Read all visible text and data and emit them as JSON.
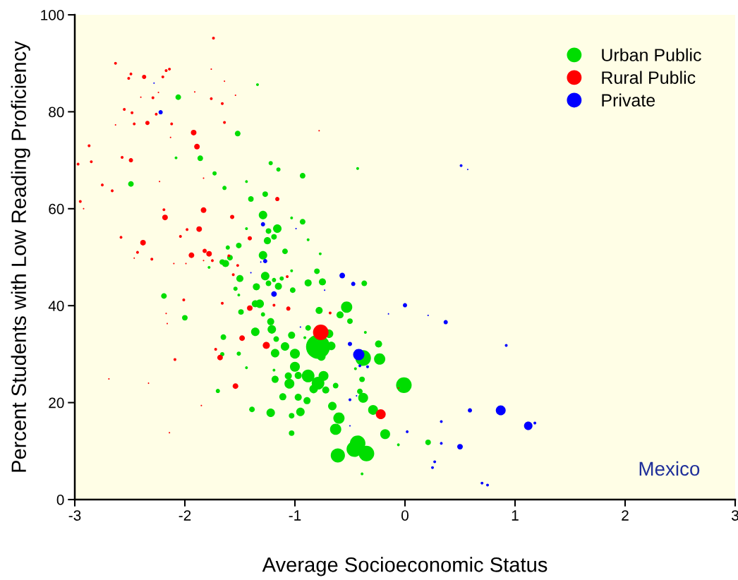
{
  "chart_data": {
    "type": "bubble",
    "xlabel": "Average Socioeconomic Status",
    "ylabel": "Percent Students with Low Reading Proficiency",
    "annotations": [
      "Mexico"
    ],
    "xlim": [
      -3,
      3
    ],
    "xticks": [
      -3,
      -2,
      -1,
      0,
      1,
      2,
      3
    ],
    "ylim": [
      0,
      100
    ],
    "yticks": [
      0,
      20,
      40,
      60,
      80,
      100
    ],
    "grid": false,
    "legend": "top right",
    "marker": "circle",
    "series": [
      {
        "name": "Urban Public",
        "color": "#00dd00",
        "x": [
          -1.34,
          -2.06,
          -1.52,
          -2.08,
          -1.86,
          -1.73,
          -2.49,
          -1.64,
          -1.44,
          -1.22,
          -1.15,
          -0.93,
          -1.4,
          -1.27,
          -1.29,
          -0.93,
          -1.16,
          -1.24,
          -1.19,
          -1.03,
          -1.44,
          -0.43,
          -1.25,
          -1.51,
          -1.61,
          -1.59,
          -1.66,
          -1.29,
          -1.09,
          -0.88,
          -0.77,
          -1.63,
          -1.78,
          -1.5,
          -1.27,
          -1.24,
          -1.15,
          -1.12,
          -1.19,
          -1.35,
          -1.54,
          -1.51,
          -1.02,
          -0.88,
          -0.75,
          -0.8,
          -1.03,
          -0.37,
          -2.19,
          -2.0,
          -1.36,
          -1.32,
          -1.49,
          -1.29,
          -0.78,
          -0.53,
          -0.59,
          -0.5,
          -1.22,
          -1.21,
          -1.36,
          -1.17,
          -1.09,
          -1.18,
          -1.0,
          -1.51,
          -1.66,
          -1.65,
          -0.88,
          -0.91,
          -1.03,
          -1.0,
          -1.19,
          -1.06,
          -1.05,
          -1.18,
          -1.44,
          -0.97,
          -1.11,
          -0.97,
          -0.89,
          -1.39,
          -1.22,
          -1.03,
          -0.95,
          -1.7,
          -1.03,
          -0.79,
          -0.69,
          -0.67,
          -0.76,
          -0.88,
          -0.79,
          -0.74,
          -0.83,
          -0.72,
          -0.63,
          -0.66,
          -0.6,
          -0.63,
          -0.61,
          -0.43,
          -0.46,
          -0.35,
          -0.39,
          -0.38,
          -0.23,
          -0.24,
          -0.36,
          -0.45,
          -0.39,
          -0.41,
          -0.38,
          -0.29,
          -0.18,
          -0.01,
          -0.06,
          0.21
        ],
        "values": [
          85.6,
          83.0,
          75.5,
          70.5,
          70.4,
          67.3,
          65.1,
          64.3,
          65.6,
          69.4,
          68.1,
          66.8,
          62.0,
          63.0,
          58.7,
          57.3,
          55.9,
          55.4,
          54.2,
          58.1,
          55.9,
          68.3,
          53.4,
          52.4,
          52.0,
          49.9,
          49.0,
          50.4,
          51.2,
          53.6,
          50.7,
          48.7,
          47.9,
          45.6,
          46.1,
          44.6,
          44.0,
          45.6,
          45.3,
          43.9,
          43.5,
          42.2,
          43.2,
          44.7,
          44.9,
          47.1,
          47.2,
          44.6,
          42.0,
          37.5,
          40.4,
          40.4,
          38.7,
          38.2,
          39.0,
          39.7,
          38.1,
          36.8,
          36.7,
          35.1,
          34.6,
          33.1,
          31.6,
          30.2,
          30.1,
          30.1,
          30.0,
          33.5,
          35.4,
          33.4,
          33.9,
          27.4,
          26.7,
          25.5,
          23.9,
          24.8,
          27.2,
          25.6,
          21.2,
          21.1,
          20.4,
          18.6,
          17.9,
          17.3,
          18.1,
          22.4,
          13.7,
          31.5,
          34.2,
          31.7,
          29.5,
          25.5,
          24.0,
          25.5,
          22.8,
          22.6,
          23.5,
          19.3,
          16.8,
          14.5,
          9.1,
          11.6,
          10.4,
          9.5,
          5.3,
          29.2,
          29.0,
          32.1,
          34.5,
          27.0,
          24.8,
          22.3,
          21.0,
          18.5,
          13.5,
          23.6,
          11.3,
          11.8
        ],
        "sizes": [
          0.014,
          0.055,
          0.055,
          0.014,
          0.055,
          0.031,
          0.055,
          0.031,
          0.014,
          0.031,
          0.031,
          0.055,
          0.055,
          0.055,
          0.125,
          0.055,
          0.125,
          0.055,
          0.055,
          0.014,
          0.014,
          0.014,
          0.087,
          0.055,
          0.031,
          0.055,
          0.055,
          0.125,
          0.055,
          0.014,
          0.014,
          0.087,
          0.014,
          0.087,
          0.125,
          0.055,
          0.087,
          0.031,
          0.031,
          0.087,
          0.031,
          0.014,
          0.055,
          0.087,
          0.087,
          0.055,
          0.014,
          0.055,
          0.055,
          0.055,
          0.087,
          0.125,
          0.055,
          0.031,
          0.087,
          0.22,
          0.087,
          0.055,
          0.087,
          0.125,
          0.125,
          0.055,
          0.125,
          0.125,
          0.17,
          0.031,
          0.031,
          0.055,
          0.055,
          0.014,
          0.087,
          0.17,
          0.014,
          0.087,
          0.17,
          0.087,
          0.014,
          0.087,
          0.087,
          0.087,
          0.087,
          0.055,
          0.125,
          0.055,
          0.125,
          0.031,
          0.055,
          1,
          0.125,
          0.125,
          0.125,
          0.28,
          0.28,
          0.17,
          0.125,
          0.087,
          0.055,
          0.125,
          0.22,
          0.22,
          0.35,
          0.42,
          0.42,
          0.42,
          0.014,
          0.42,
          0.22,
          0.087,
          0.014,
          0.014,
          0.055,
          0.055,
          0.17,
          0.17,
          0.17,
          0.42,
          0.014,
          0.055
        ]
      },
      {
        "name": "Rural Public",
        "color": "#ff0000",
        "x": [
          -2.63,
          -2.49,
          -2.51,
          -2.37,
          -2.17,
          -2.14,
          -2.2,
          -1.74,
          -1.76,
          -1.64,
          -1.91,
          -2.4,
          -2.29,
          -2.24,
          -1.76,
          -1.66,
          -1.54,
          -2.55,
          -2.48,
          -2.26,
          -2.46,
          -2.34,
          -2.12,
          -1.64,
          -2.63,
          -2.13,
          -1.92,
          -1.89,
          -2.87,
          -2.57,
          -2.49,
          -2.85,
          -2.97,
          -1.83,
          -2.23,
          -2.75,
          -2.66,
          -2.95,
          -2.92,
          -2.19,
          -2.18,
          -1.83,
          -1.57,
          -1.87,
          -1.98,
          -2.04,
          -1.16,
          -1.41,
          -2.58,
          -2.38,
          -2.43,
          -2.46,
          -2.3,
          -1.94,
          -1.82,
          -1.78,
          -1.75,
          -1.83,
          -1.99,
          -2.1,
          -1.6,
          -1.52,
          -1.56,
          -1.07,
          -2.01,
          -1.66,
          -2.17,
          -2.16,
          -1.41,
          -1.19,
          -1.06,
          -1.48,
          -1.26,
          -1.72,
          -1.68,
          -2.09,
          -1.54,
          -2.69,
          -2.33,
          -1.85,
          -2.14,
          -0.765,
          -0.68,
          -0.22,
          -0.06,
          -0.78
        ],
        "values": [
          90.0,
          87.8,
          86.9,
          87.2,
          88.5,
          88.8,
          87.2,
          95.2,
          88.8,
          86.3,
          84.1,
          83.0,
          82.9,
          84.0,
          82.7,
          81.7,
          83.4,
          80.5,
          79.8,
          79.5,
          77.5,
          77.7,
          77.5,
          77.8,
          77.3,
          74.7,
          75.7,
          72.8,
          73.0,
          70.6,
          70.0,
          69.7,
          69.2,
          66.3,
          65.6,
          64.9,
          63.7,
          61.5,
          60.0,
          59.8,
          58.2,
          59.7,
          58.3,
          55.8,
          55.7,
          54.3,
          62.0,
          53.9,
          54.1,
          53.0,
          51.0,
          49.8,
          49.6,
          50.4,
          51.3,
          50.7,
          49.3,
          49.3,
          48.7,
          48.7,
          50.3,
          48.3,
          46.4,
          46.0,
          41.2,
          40.5,
          38.4,
          36.3,
          39.5,
          40.1,
          39.4,
          33.3,
          31.8,
          31.0,
          29.3,
          28.9,
          23.4,
          24.9,
          24.0,
          19.4,
          13.8,
          34.5,
          38.5,
          17.6,
          23.0,
          76.1
        ],
        "sizes": [
          0.014,
          0.014,
          0.014,
          0.031,
          0.014,
          0.014,
          0.014,
          0.014,
          0.0035,
          0.0035,
          0.0035,
          0.0035,
          0.014,
          0.0035,
          0.014,
          0.014,
          0.0035,
          0.014,
          0.014,
          0.014,
          0.014,
          0.031,
          0.014,
          0.014,
          0.0035,
          0.0035,
          0.055,
          0.055,
          0.014,
          0.014,
          0.031,
          0.014,
          0.014,
          0.0035,
          0.0035,
          0.014,
          0.014,
          0.014,
          0.0035,
          0.014,
          0.055,
          0.055,
          0.031,
          0.055,
          0.014,
          0.014,
          0.031,
          0.031,
          0.014,
          0.055,
          0.014,
          0.0035,
          0.014,
          0.055,
          0.031,
          0.055,
          0.014,
          0.0035,
          0.0035,
          0.0035,
          0.014,
          0.014,
          0.014,
          0.014,
          0.014,
          0.014,
          0.0035,
          0.0035,
          0.055,
          0.014,
          0.031,
          0.055,
          0.087,
          0.014,
          0.055,
          0.014,
          0.055,
          0.0035,
          0.0035,
          0.0035,
          0.0035,
          0.42,
          0.014,
          0.17,
          0.0035,
          0.0035
        ]
      },
      {
        "name": "Private",
        "color": "#0000ff",
        "x": [
          -2.28,
          -2.22,
          -1.29,
          -0.99,
          -1.27,
          -1.31,
          -1.4,
          -1.19,
          -0.57,
          -0.47,
          -0.73,
          0.0,
          -0.15,
          0.21,
          0.37,
          -0.5,
          -0.42,
          -0.34,
          -0.41,
          -0.5,
          -0.44,
          -0.5,
          -0.95,
          0.59,
          0.33,
          0.02,
          0.33,
          0.5,
          0.27,
          0.25,
          0.51,
          0.57,
          0.92,
          0.87,
          1.12,
          1.18,
          0.7,
          0.75
        ],
        "values": [
          85.9,
          79.9,
          56.8,
          55.9,
          49.2,
          49.0,
          46.8,
          42.4,
          46.2,
          44.5,
          43.2,
          40.1,
          38.3,
          38.0,
          36.6,
          32.1,
          29.9,
          27.4,
          27.6,
          20.6,
          21.4,
          15.2,
          35.6,
          18.4,
          16.1,
          14.0,
          11.6,
          10.9,
          7.8,
          6.6,
          68.9,
          68.1,
          31.8,
          18.4,
          15.2,
          15.8,
          3.4,
          3.0
        ],
        "sizes": [
          0.0035,
          0.031,
          0.031,
          0.0035,
          0.031,
          0.0035,
          0.0035,
          0.055,
          0.055,
          0.031,
          0.0035,
          0.031,
          0.0035,
          0.0035,
          0.031,
          0.031,
          0.22,
          0.014,
          0.014,
          0.014,
          0.0035,
          0.0035,
          0.0035,
          0.031,
          0.014,
          0.014,
          0.014,
          0.055,
          0.014,
          0.014,
          0.014,
          0.0035,
          0.014,
          0.17,
          0.125,
          0.014,
          0.014,
          0.014
        ]
      }
    ]
  }
}
